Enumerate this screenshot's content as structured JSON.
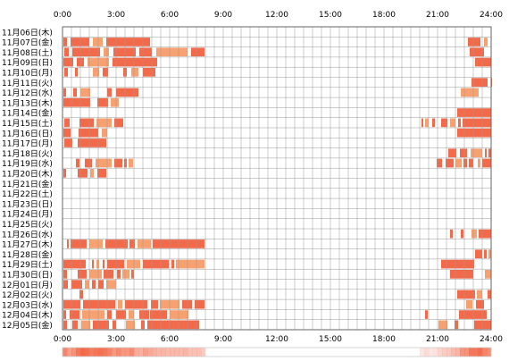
{
  "chart_data": {
    "type": "heatmap",
    "title": "",
    "xlabel": "",
    "ylabel": "",
    "xlim": [
      0,
      24
    ],
    "x_ticks": [
      "0:00",
      "3:00",
      "6:00",
      "9:00",
      "12:00",
      "15:00",
      "18:00",
      "21:00",
      "24:00"
    ],
    "grid": true,
    "colors": {
      "activity": "#f26a4a",
      "activity_light": "#f7a070",
      "grid": "#999999",
      "border": "#666666"
    },
    "rows": [
      {
        "label": "11月06日(木)",
        "segments": []
      },
      {
        "label": "11月07日(金)",
        "segments": [
          [
            0.05,
            0.25
          ],
          [
            0.45,
            1.5
          ],
          [
            1.7,
            2.25
          ],
          [
            2.45,
            4.9
          ],
          [
            22.7,
            23.4
          ],
          [
            23.6,
            23.8
          ]
        ]
      },
      {
        "label": "11月08日(土)",
        "segments": [
          [
            0.1,
            0.35
          ],
          [
            0.55,
            2.1
          ],
          [
            2.3,
            2.6
          ],
          [
            2.85,
            4.1
          ],
          [
            4.3,
            5.0
          ],
          [
            5.25,
            7.0
          ],
          [
            7.2,
            7.95
          ],
          [
            22.8,
            23.6
          ]
        ]
      },
      {
        "label": "11月09日(日)",
        "segments": [
          [
            0.05,
            0.6
          ],
          [
            0.8,
            1.2
          ],
          [
            1.4,
            2.6
          ],
          [
            2.8,
            5.3
          ],
          [
            23.1,
            24.0
          ]
        ]
      },
      {
        "label": "11月10日(月)",
        "segments": [
          [
            0.1,
            0.3
          ],
          [
            0.7,
            0.85
          ],
          [
            1.7,
            2.05
          ],
          [
            2.25,
            2.55
          ],
          [
            3.4,
            3.6
          ],
          [
            3.85,
            4.25
          ],
          [
            4.5,
            5.2
          ]
        ]
      },
      {
        "label": "11月11日(火)",
        "segments": [
          [
            22.9,
            23.8
          ],
          [
            24.0,
            24.0
          ]
        ]
      },
      {
        "label": "11月12日(水)",
        "segments": [
          [
            0.05,
            0.2
          ],
          [
            0.6,
            0.8
          ],
          [
            1.0,
            1.55
          ],
          [
            2.5,
            2.75
          ],
          [
            3.0,
            4.25
          ],
          [
            22.3,
            23.3
          ]
        ]
      },
      {
        "label": "11月13日(木)",
        "segments": [
          [
            0.05,
            1.55
          ],
          [
            1.95,
            2.55
          ],
          [
            2.7,
            3.15
          ]
        ]
      },
      {
        "label": "11月14日(金)",
        "segments": [
          [
            22.1,
            24.0
          ]
        ]
      },
      {
        "label": "11月15日(土)",
        "segments": [
          [
            0.1,
            0.4
          ],
          [
            0.95,
            1.75
          ],
          [
            1.9,
            2.75
          ],
          [
            2.9,
            3.4
          ],
          [
            20.1,
            20.2
          ],
          [
            20.3,
            20.5
          ],
          [
            20.7,
            20.85
          ],
          [
            21.2,
            21.55
          ],
          [
            21.7,
            22.0
          ],
          [
            22.15,
            22.3
          ],
          [
            22.4,
            24.0
          ]
        ]
      },
      {
        "label": "11月16日(日)",
        "segments": [
          [
            0.05,
            0.45
          ],
          [
            0.9,
            2.0
          ],
          [
            2.2,
            2.5
          ],
          [
            22.1,
            24.0
          ]
        ]
      },
      {
        "label": "11月17日(月)",
        "segments": [
          [
            0.1,
            0.55
          ],
          [
            0.85,
            2.45
          ]
        ]
      },
      {
        "label": "11月18日(火)",
        "segments": [
          [
            21.6,
            22.05
          ],
          [
            22.25,
            22.65
          ],
          [
            22.85,
            23.5
          ],
          [
            23.65,
            23.75
          ],
          [
            23.85,
            24.0
          ]
        ]
      },
      {
        "label": "11月19日(水)",
        "segments": [
          [
            0.75,
            0.95
          ],
          [
            1.25,
            1.65
          ],
          [
            1.85,
            2.75
          ],
          [
            2.9,
            3.35
          ],
          [
            3.45,
            3.6
          ],
          [
            3.7,
            3.95
          ],
          [
            20.95,
            21.25
          ],
          [
            21.45,
            21.9
          ],
          [
            22.0,
            22.35
          ],
          [
            22.45,
            22.65
          ],
          [
            22.75,
            23.0
          ],
          [
            23.25,
            23.4
          ],
          [
            23.5,
            24.0
          ]
        ]
      },
      {
        "label": "11月20日(木)",
        "segments": [
          [
            0.05,
            0.2
          ],
          [
            0.85,
            1.4
          ],
          [
            1.55,
            1.75
          ],
          [
            1.95,
            2.45
          ]
        ]
      },
      {
        "label": "11月21日(金)",
        "segments": []
      },
      {
        "label": "11月22日(土)",
        "segments": []
      },
      {
        "label": "11月23日(日)",
        "segments": []
      },
      {
        "label": "11月24日(月)",
        "segments": []
      },
      {
        "label": "11月25日(火)",
        "segments": []
      },
      {
        "label": "11月26日(水)",
        "segments": [
          [
            21.7,
            21.85
          ],
          [
            22.3,
            22.45
          ],
          [
            22.9,
            23.2
          ],
          [
            23.3,
            24.0
          ]
        ]
      },
      {
        "label": "11月27日(木)",
        "segments": [
          [
            0.25,
            0.35
          ],
          [
            0.45,
            1.35
          ],
          [
            1.5,
            2.25
          ],
          [
            2.4,
            3.65
          ],
          [
            3.75,
            4.05
          ],
          [
            4.2,
            4.95
          ],
          [
            5.05,
            7.95
          ]
        ]
      },
      {
        "label": "11月28日(金)",
        "segments": [
          [
            23.1,
            23.5
          ],
          [
            23.6,
            23.75
          ],
          [
            23.85,
            24.0
          ]
        ]
      },
      {
        "label": "11月29日(土)",
        "segments": [
          [
            0.05,
            1.3
          ],
          [
            1.65,
            1.75
          ],
          [
            1.9,
            2.05
          ],
          [
            2.25,
            2.35
          ],
          [
            2.5,
            3.45
          ],
          [
            3.6,
            4.35
          ],
          [
            4.5,
            5.95
          ],
          [
            6.1,
            6.25
          ],
          [
            6.35,
            7.95
          ],
          [
            21.2,
            23.05
          ]
        ]
      },
      {
        "label": "11月30日(日)",
        "segments": [
          [
            0.05,
            0.25
          ],
          [
            0.85,
            1.35
          ],
          [
            1.5,
            2.2
          ],
          [
            2.3,
            2.85
          ],
          [
            3.05,
            3.25
          ],
          [
            3.35,
            3.75
          ],
          [
            3.85,
            4.0
          ],
          [
            21.7,
            23.0
          ],
          [
            23.65,
            24.0
          ]
        ]
      },
      {
        "label": "12月01日(月)",
        "segments": [
          [
            0.05,
            0.3
          ],
          [
            0.5,
            1.1
          ],
          [
            1.25,
            1.5
          ],
          [
            1.65,
            1.85
          ],
          [
            2.0,
            2.3
          ],
          [
            2.45,
            3.0
          ]
        ]
      },
      {
        "label": "12月02日(火)",
        "segments": [
          [
            0.95,
            1.15
          ],
          [
            22.1,
            23.1
          ],
          [
            23.2,
            23.5
          ],
          [
            23.8,
            24.0
          ]
        ]
      },
      {
        "label": "12月03日(水)",
        "segments": [
          [
            0.05,
            1.0
          ],
          [
            1.15,
            2.95
          ],
          [
            3.1,
            3.35
          ],
          [
            3.5,
            4.75
          ],
          [
            4.95,
            5.35
          ],
          [
            5.45,
            6.55
          ],
          [
            6.7,
            7.25
          ],
          [
            7.4,
            7.95
          ],
          [
            22.6,
            22.95
          ],
          [
            23.15,
            23.6
          ]
        ]
      },
      {
        "label": "12月04日(木)",
        "segments": [
          [
            0.05,
            0.2
          ],
          [
            0.4,
            0.95
          ],
          [
            1.1,
            2.35
          ],
          [
            2.5,
            2.75
          ],
          [
            3.0,
            3.55
          ],
          [
            3.7,
            4.0
          ],
          [
            4.3,
            4.85
          ],
          [
            4.9,
            5.85
          ],
          [
            6.0,
            7.05
          ],
          [
            20.3,
            20.45
          ],
          [
            22.2,
            23.75
          ]
        ]
      },
      {
        "label": "12月05日(金)",
        "segments": [
          [
            0.05,
            0.25
          ],
          [
            0.55,
            0.85
          ],
          [
            1.05,
            1.55
          ],
          [
            1.7,
            2.6
          ],
          [
            2.8,
            3.0
          ],
          [
            3.55,
            4.05
          ],
          [
            4.4,
            4.6
          ],
          [
            4.75,
            7.65
          ],
          [
            21.05,
            21.55
          ],
          [
            21.95,
            22.15
          ],
          [
            23.05,
            24.0
          ]
        ]
      }
    ]
  }
}
